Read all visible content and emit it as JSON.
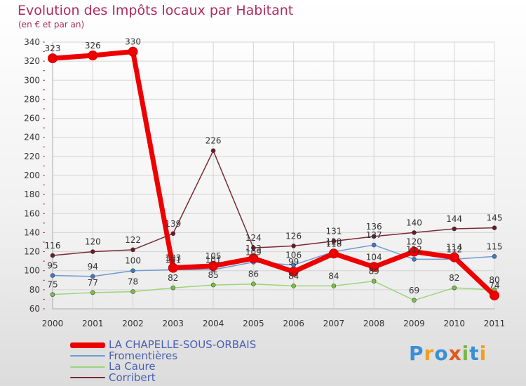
{
  "title": "Evolution des Impôts locaux par Habitant",
  "subtitle": "(en € et par an)",
  "logo": {
    "text": "Proxiti",
    "colors": [
      "#3a8fd6",
      "#f0a020",
      "#3a8fd6",
      "#e05a1a",
      "#7ab648",
      "#3a8fd6",
      "#f0a020"
    ]
  },
  "chart_data": {
    "type": "line",
    "title": "Evolution des Impôts locaux par Habitant",
    "subtitle": "(en € et par an)",
    "xlabel": "",
    "ylabel": "",
    "x": [
      "2000",
      "2001",
      "2002",
      "2003",
      "2004",
      "2005",
      "2006",
      "2007",
      "2008",
      "2009",
      "2010",
      "2011"
    ],
    "ylim": [
      60,
      340
    ],
    "yticks": [
      60,
      80,
      100,
      120,
      140,
      160,
      180,
      200,
      220,
      240,
      260,
      280,
      300,
      320,
      340
    ],
    "grid": true,
    "legend_position": "bottom-left",
    "series": [
      {
        "name": "LA CHAPELLE-SOUS-ORBAIS",
        "color": "#ee0000",
        "marker_color": "#ee0000",
        "width": 7,
        "values": [
          323,
          326,
          330,
          103,
          105,
          113,
          99,
          118,
          104,
          120,
          114,
          74
        ],
        "labels": [
          "323",
          "326",
          "330",
          "103",
          "105",
          "113",
          "99",
          "118",
          "104",
          "120",
          "114",
          "74"
        ]
      },
      {
        "name": "Fromentières",
        "color": "#6c9bd2",
        "marker_color": "#3b7cc8",
        "width": 1.5,
        "values": [
          95,
          94,
          100,
          101,
          101,
          109,
          106,
          120,
          127,
          112,
          112,
          115
        ],
        "labels": [
          "95",
          "94",
          "100",
          "101",
          "101",
          "109",
          "106",
          "120",
          "127",
          "112",
          "112",
          "115"
        ]
      },
      {
        "name": "La Caure",
        "color": "#9ed47a",
        "marker_color": "#7ac045",
        "width": 1.5,
        "values": [
          75,
          77,
          78,
          82,
          85,
          86,
          84,
          84,
          89,
          69,
          82,
          80
        ],
        "labels": [
          "75",
          "77",
          "78",
          "82",
          "85",
          "86",
          "84",
          "84",
          "89",
          "69",
          "82",
          "80"
        ]
      },
      {
        "name": "Corribert",
        "color": "#7a2a35",
        "marker_color": "#6a1a25",
        "width": 1.5,
        "values": [
          116,
          120,
          122,
          139,
          226,
          124,
          126,
          131,
          136,
          140,
          144,
          145
        ],
        "labels": [
          "116",
          "120",
          "122",
          "139",
          "226",
          "124",
          "126",
          "131",
          "136",
          "140",
          "144",
          "145"
        ]
      }
    ]
  }
}
